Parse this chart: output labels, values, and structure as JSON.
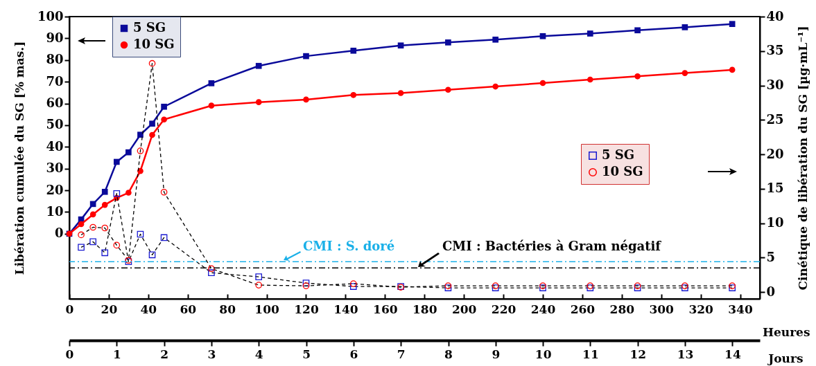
{
  "chart_data": {
    "type": "line",
    "xlabel": "Heures",
    "ylabel": "Libération cumulée du SG [% mas.]",
    "y2label": "Cinétique de libération du SG [µg·mL⁻¹]",
    "x2label": "Jours",
    "x": [
      0,
      6,
      12,
      18,
      24,
      30,
      36,
      42,
      48,
      72,
      96,
      120,
      144,
      168,
      192,
      216,
      240,
      264,
      288,
      312,
      336
    ],
    "xlim": [
      0,
      350
    ],
    "xticks": [
      0,
      20,
      40,
      60,
      80,
      100,
      120,
      140,
      160,
      180,
      200,
      220,
      240,
      260,
      280,
      300,
      320,
      340
    ],
    "x2lim": [
      0,
      14.58
    ],
    "x2ticks": [
      0,
      1,
      2,
      3,
      4,
      5,
      6,
      7,
      8,
      9,
      10,
      11,
      12,
      13,
      14
    ],
    "ylim": [
      -30,
      100
    ],
    "yticks": [
      0,
      10,
      20,
      30,
      40,
      50,
      60,
      70,
      80,
      90,
      100
    ],
    "y2lim": [
      -1,
      40
    ],
    "y2ticks": [
      0,
      5,
      10,
      15,
      20,
      25,
      30,
      35,
      40
    ],
    "series": [
      {
        "name": "5 SG",
        "color": "#0a0a9a",
        "marker": "square",
        "line_style": "solid",
        "values": [
          0,
          6.6,
          13.7,
          19.3,
          33.1,
          37.5,
          45.6,
          50.7,
          58.5,
          69.3,
          77.3,
          81.8,
          84.3,
          86.7,
          88.1,
          89.4,
          91,
          92.2,
          93.7,
          95.1,
          96.6
        ]
      },
      {
        "name": "10 SG",
        "color": "#ff0000",
        "marker": "circle",
        "line_style": "solid",
        "values": [
          0,
          4.4,
          8.9,
          13.3,
          16.5,
          18.9,
          28.9,
          45.5,
          52.6,
          59,
          60.6,
          61.8,
          63.9,
          64.8,
          66.3,
          67.8,
          69.4,
          71,
          72.5,
          74,
          75.5
        ]
      },
      {
        "name": "5 SG",
        "color": "#1a1ad0",
        "marker": "square",
        "line_style": "dashed",
        "axis": "y2",
        "values": [
          null,
          6.5,
          7.3,
          5.7,
          14.3,
          4.4,
          8.4,
          5.4,
          7.9,
          2.8,
          2.2,
          1.3,
          0.8,
          0.8,
          0.6,
          0.6,
          0.6,
          0.6,
          0.6,
          0.6,
          0.6
        ]
      },
      {
        "name": "10 SG",
        "color": "#ff0000",
        "marker": "circle",
        "line_style": "dashed",
        "axis": "y2",
        "values": [
          null,
          8.3,
          9.4,
          9.3,
          6.8,
          4.6,
          20.5,
          33.2,
          14.5,
          3.4,
          1,
          0.9,
          1.2,
          0.7,
          0.9,
          0.9,
          0.9,
          0.9,
          0.9,
          0.9,
          0.9
        ]
      }
    ],
    "ref_lines": [
      {
        "axis": "y2",
        "value": 4.4,
        "label": "CMI : S. doré",
        "color": "#1ab0e8",
        "line_style": "dashed"
      },
      {
        "axis": "y2",
        "value": 3.5,
        "label": "CMI : Bactéries à Gram négatif",
        "color": "#000000",
        "line_style": "dashed"
      }
    ],
    "legend": "top left",
    "grid": false
  }
}
